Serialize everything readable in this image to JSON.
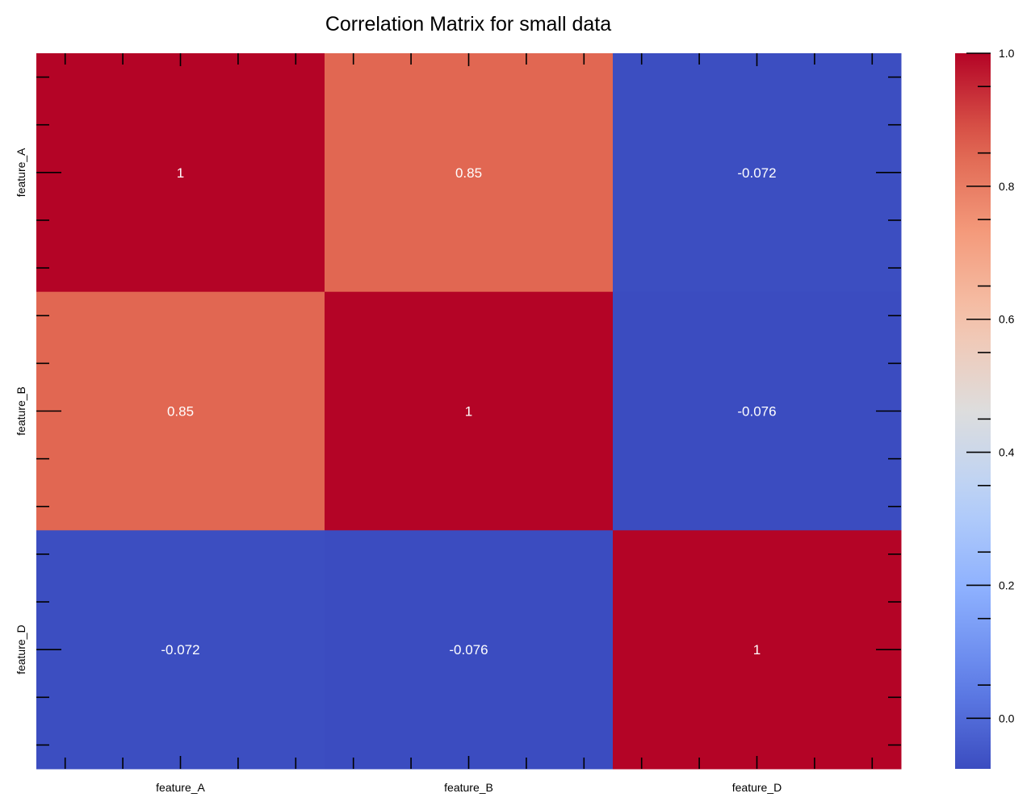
{
  "chart_data": {
    "type": "heatmap",
    "title": "Correlation Matrix for small data",
    "x_categories": [
      "feature_A",
      "feature_B",
      "feature_D"
    ],
    "y_categories": [
      "feature_A",
      "feature_B",
      "feature_D"
    ],
    "values": [
      [
        1.0,
        0.85,
        -0.072
      ],
      [
        0.85,
        1.0,
        -0.076
      ],
      [
        -0.072,
        -0.076,
        1.0
      ]
    ],
    "annotations": [
      [
        "1",
        "0.85",
        "-0.072"
      ],
      [
        "0.85",
        "1",
        "-0.076"
      ],
      [
        "-0.072",
        "-0.076",
        "1"
      ]
    ],
    "colormap": "coolwarm",
    "colorbar": {
      "vmin": -0.076,
      "vmax": 1.0,
      "ticks": [
        0.0,
        0.2,
        0.4,
        0.6,
        0.8,
        1.0
      ],
      "tick_labels": [
        "0.0",
        "0.2",
        "0.4",
        "0.6",
        "0.8",
        "1.0"
      ]
    },
    "grid": false,
    "legend": "colorbar-right"
  }
}
